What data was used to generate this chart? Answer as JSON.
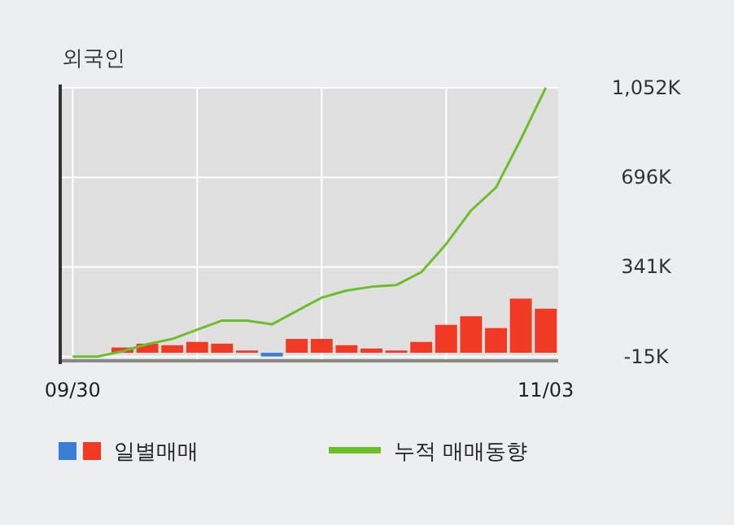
{
  "chart_data": {
    "type": "bar",
    "title": "외국인",
    "categories": [
      "09/30",
      null,
      null,
      null,
      null,
      null,
      null,
      null,
      null,
      null,
      null,
      null,
      null,
      null,
      null,
      null,
      null,
      null,
      null,
      "11/03"
    ],
    "ylim": [
      -32,
      1052
    ],
    "yticks": [
      {
        "value": -15,
        "label": "-15K"
      },
      {
        "value": 341,
        "label": "341K"
      },
      {
        "value": 696,
        "label": "696K"
      },
      {
        "value": 1052,
        "label": "1,052K"
      }
    ],
    "grid": true,
    "legend": "bottom",
    "series": [
      {
        "name": "일별매매",
        "colors": [
          "#f03a24",
          "#f03a24",
          "#f03a24",
          "#f03a24",
          "#f03a24",
          "#f03a24",
          "#f03a24",
          "#f03a24",
          "#3a7fd5",
          "#f03a24",
          "#f03a24",
          "#f03a24",
          "#f03a24",
          "#f03a24",
          "#f03a24",
          "#f03a24",
          "#f03a24",
          "#f03a24",
          "#f03a24",
          "#f03a24"
        ],
        "values": [
          0,
          0,
          21,
          36,
          30,
          43,
          36,
          9,
          -15,
          55,
          55,
          30,
          17,
          9,
          43,
          111,
          145,
          98,
          215,
          175
        ]
      },
      {
        "name": "누적 매매동향",
        "type": "line",
        "color": "#6cbf2a",
        "values": [
          -15,
          -15,
          6,
          34,
          55,
          92,
          128,
          128,
          113,
          166,
          219,
          247,
          262,
          269,
          320,
          432,
          565,
          656,
          848,
          1052
        ]
      }
    ]
  }
}
